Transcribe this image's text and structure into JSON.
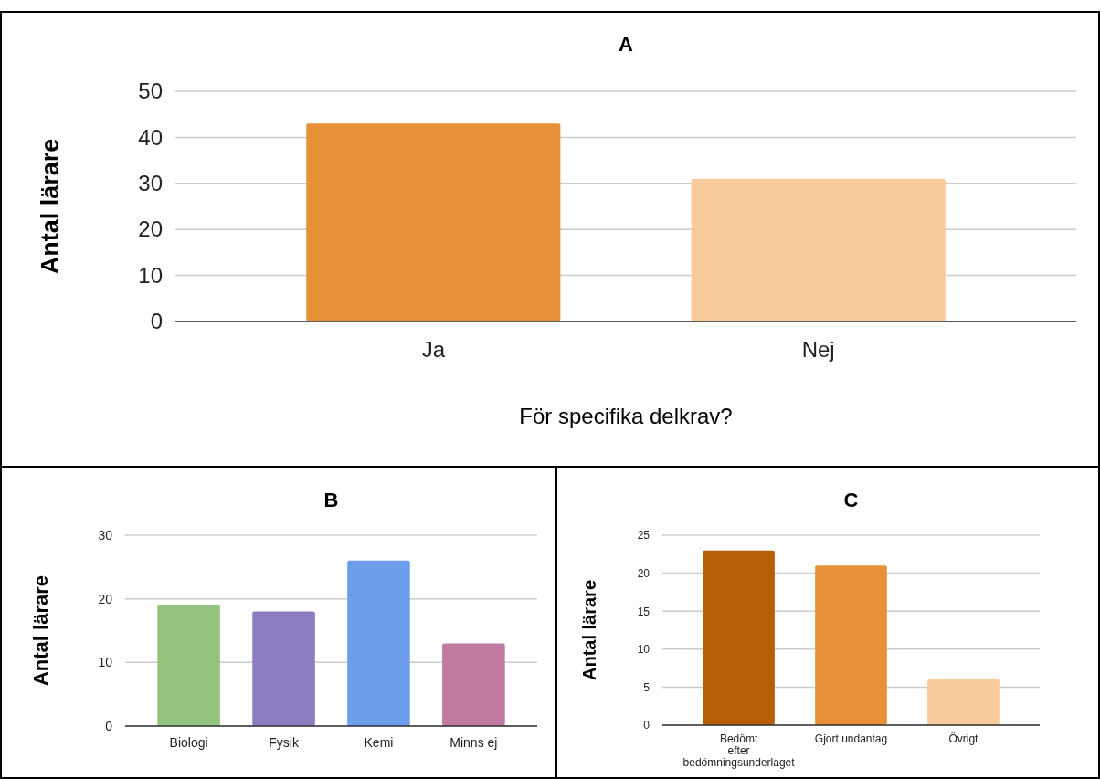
{
  "chart_data": [
    {
      "type": "bar",
      "title": "A",
      "ylabel": "Antal lärare",
      "xlabel": "För specifika delkrav?",
      "categories": [
        "Ja",
        "Nej"
      ],
      "colors": [
        "#e69138",
        "#f9cb9c"
      ],
      "values": [
        43,
        31
      ],
      "ylim": [
        0,
        50
      ],
      "yticks": [
        0,
        10,
        20,
        30,
        40,
        50
      ],
      "grid": "y"
    },
    {
      "type": "bar",
      "title": "B",
      "ylabel": "Antal lärare",
      "categories": [
        "Biologi",
        "Fysik",
        "Kemi",
        "Minns ej"
      ],
      "colors": [
        "#93c47d",
        "#8e7cc3",
        "#6d9eeb",
        "#c27ba0"
      ],
      "values": [
        19,
        18,
        26,
        13
      ],
      "ylim": [
        0,
        30
      ],
      "yticks": [
        0,
        10,
        20,
        30
      ],
      "grid": "y"
    },
    {
      "type": "bar",
      "title": "C",
      "ylabel": "Antal lärare",
      "categories": [
        "Bedömt efter bedömningsunderlaget",
        "Gjort undantag",
        "Övrigt"
      ],
      "colors": [
        "#b45f06",
        "#e69138",
        "#f9cb9c"
      ],
      "values": [
        23,
        21,
        6
      ],
      "ylim": [
        0,
        25
      ],
      "yticks": [
        0,
        5,
        10,
        15,
        20,
        25
      ],
      "grid": "y"
    }
  ]
}
